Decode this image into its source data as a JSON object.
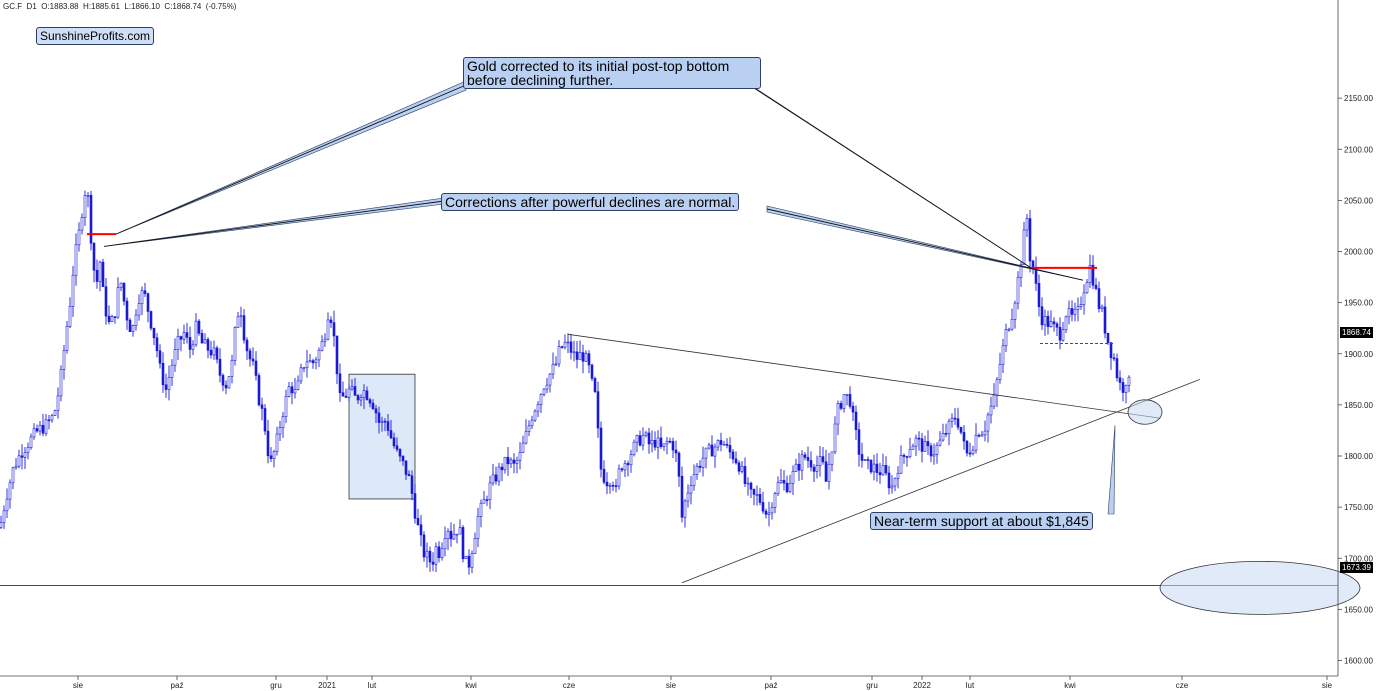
{
  "header": {
    "text": "GC.F  D1  O:1883.88  H:1885.61  L:1866.10  C:1868.74  (-0.75%)"
  },
  "watermark": "SunshineProfits.com",
  "annotations": {
    "top": [
      "Gold corrected to its initial post-top bottom",
      "before declining further."
    ],
    "mid": "Corrections after powerful declines are normal.",
    "support": "Near-term support at about $1,845"
  },
  "price_tags": {
    "last": "1868.74",
    "level": "1673.39"
  },
  "chart_data": {
    "type": "candlestick",
    "title": "",
    "xlabel": "",
    "ylabel": "",
    "ylim": [
      1590,
      2175
    ],
    "y_ticks": [
      1600,
      1650,
      1700,
      1750,
      1800,
      1850,
      1900,
      1950,
      2000,
      2050,
      2100,
      2150
    ],
    "y_tick_labels": [
      "1600.00",
      "1650.00",
      "1700.00",
      "1750.00",
      "1800.00",
      "1850.00",
      "1900.00",
      "1950.00",
      "2000.00",
      "2050.00",
      "2100.00",
      "2150.00"
    ],
    "x_tick_labels": [
      "sie",
      "paź",
      "gru",
      "2021",
      "lut",
      "kwi",
      "cze",
      "sie",
      "paź",
      "gru",
      "2022",
      "lut",
      "kwi",
      "cze",
      "sie"
    ],
    "price_path": [
      [
        0,
        1730
      ],
      [
        6,
        1760
      ],
      [
        14,
        1790
      ],
      [
        22,
        1805
      ],
      [
        30,
        1815
      ],
      [
        38,
        1825
      ],
      [
        46,
        1830
      ],
      [
        54,
        1840
      ],
      [
        60,
        1870
      ],
      [
        66,
        1920
      ],
      [
        70,
        1950
      ],
      [
        74,
        1990
      ],
      [
        78,
        2010
      ],
      [
        82,
        2040
      ],
      [
        86,
        2065
      ],
      [
        89,
        2045
      ],
      [
        92,
        2000
      ],
      [
        96,
        1965
      ],
      [
        100,
        1990
      ],
      [
        104,
        1950
      ],
      [
        110,
        1925
      ],
      [
        116,
        1945
      ],
      [
        120,
        1975
      ],
      [
        126,
        1940
      ],
      [
        132,
        1920
      ],
      [
        138,
        1955
      ],
      [
        144,
        1960
      ],
      [
        150,
        1935
      ],
      [
        156,
        1910
      ],
      [
        160,
        1885
      ],
      [
        166,
        1865
      ],
      [
        172,
        1890
      ],
      [
        178,
        1910
      ],
      [
        184,
        1920
      ],
      [
        190,
        1905
      ],
      [
        196,
        1925
      ],
      [
        202,
        1910
      ],
      [
        208,
        1905
      ],
      [
        214,
        1900
      ],
      [
        220,
        1880
      ],
      [
        226,
        1870
      ],
      [
        232,
        1890
      ],
      [
        236,
        1930
      ],
      [
        240,
        1950
      ],
      [
        244,
        1920
      ],
      [
        248,
        1900
      ],
      [
        254,
        1885
      ],
      [
        258,
        1860
      ],
      [
        264,
        1835
      ],
      [
        270,
        1790
      ],
      [
        276,
        1810
      ],
      [
        282,
        1840
      ],
      [
        290,
        1870
      ],
      [
        296,
        1860
      ],
      [
        302,
        1885
      ],
      [
        306,
        1895
      ],
      [
        312,
        1890
      ],
      [
        318,
        1900
      ],
      [
        324,
        1915
      ],
      [
        328,
        1940
      ],
      [
        332,
        1935
      ],
      [
        336,
        1895
      ],
      [
        340,
        1855
      ],
      [
        346,
        1860
      ],
      [
        350,
        1865
      ],
      [
        356,
        1855
      ],
      [
        362,
        1865
      ],
      [
        368,
        1860
      ],
      [
        374,
        1850
      ],
      [
        380,
        1830
      ],
      [
        386,
        1835
      ],
      [
        392,
        1815
      ],
      [
        398,
        1800
      ],
      [
        404,
        1790
      ],
      [
        410,
        1775
      ],
      [
        416,
        1740
      ],
      [
        420,
        1720
      ],
      [
        424,
        1705
      ],
      [
        428,
        1700
      ],
      [
        432,
        1695
      ],
      [
        436,
        1710
      ],
      [
        440,
        1705
      ],
      [
        444,
        1725
      ],
      [
        448,
        1730
      ],
      [
        452,
        1720
      ],
      [
        456,
        1730
      ],
      [
        460,
        1725
      ],
      [
        464,
        1700
      ],
      [
        468,
        1690
      ],
      [
        472,
        1710
      ],
      [
        478,
        1740
      ],
      [
        484,
        1755
      ],
      [
        490,
        1770
      ],
      [
        496,
        1780
      ],
      [
        502,
        1790
      ],
      [
        508,
        1795
      ],
      [
        514,
        1790
      ],
      [
        520,
        1800
      ],
      [
        526,
        1820
      ],
      [
        532,
        1840
      ],
      [
        538,
        1855
      ],
      [
        544,
        1870
      ],
      [
        550,
        1880
      ],
      [
        556,
        1890
      ],
      [
        560,
        1905
      ],
      [
        566,
        1910
      ],
      [
        570,
        1905
      ],
      [
        576,
        1895
      ],
      [
        582,
        1900
      ],
      [
        588,
        1890
      ],
      [
        592,
        1870
      ],
      [
        596,
        1855
      ],
      [
        600,
        1790
      ],
      [
        606,
        1775
      ],
      [
        612,
        1780
      ],
      [
        616,
        1765
      ],
      [
        620,
        1790
      ],
      [
        626,
        1795
      ],
      [
        632,
        1805
      ],
      [
        638,
        1815
      ],
      [
        644,
        1820
      ],
      [
        650,
        1810
      ],
      [
        656,
        1815
      ],
      [
        662,
        1805
      ],
      [
        668,
        1815
      ],
      [
        674,
        1810
      ],
      [
        678,
        1790
      ],
      [
        682,
        1740
      ],
      [
        686,
        1760
      ],
      [
        692,
        1780
      ],
      [
        698,
        1790
      ],
      [
        704,
        1800
      ],
      [
        710,
        1805
      ],
      [
        716,
        1810
      ],
      [
        722,
        1815
      ],
      [
        728,
        1805
      ],
      [
        734,
        1800
      ],
      [
        740,
        1790
      ],
      [
        746,
        1770
      ],
      [
        752,
        1760
      ],
      [
        758,
        1760
      ],
      [
        764,
        1750
      ],
      [
        768,
        1740
      ],
      [
        774,
        1765
      ],
      [
        780,
        1775
      ],
      [
        786,
        1770
      ],
      [
        792,
        1780
      ],
      [
        798,
        1790
      ],
      [
        804,
        1800
      ],
      [
        810,
        1795
      ],
      [
        816,
        1790
      ],
      [
        822,
        1795
      ],
      [
        826,
        1775
      ],
      [
        832,
        1810
      ],
      [
        838,
        1845
      ],
      [
        844,
        1860
      ],
      [
        850,
        1855
      ],
      [
        854,
        1830
      ],
      [
        860,
        1800
      ],
      [
        866,
        1790
      ],
      [
        872,
        1790
      ],
      [
        878,
        1785
      ],
      [
        884,
        1785
      ],
      [
        888,
        1775
      ],
      [
        892,
        1770
      ],
      [
        898,
        1790
      ],
      [
        904,
        1800
      ],
      [
        910,
        1810
      ],
      [
        916,
        1815
      ],
      [
        922,
        1810
      ],
      [
        928,
        1805
      ],
      [
        934,
        1805
      ],
      [
        938,
        1810
      ],
      [
        944,
        1820
      ],
      [
        950,
        1830
      ],
      [
        956,
        1840
      ],
      [
        962,
        1820
      ],
      [
        966,
        1800
      ],
      [
        972,
        1810
      ],
      [
        978,
        1825
      ],
      [
        984,
        1825
      ],
      [
        988,
        1840
      ],
      [
        994,
        1855
      ],
      [
        1000,
        1890
      ],
      [
        1006,
        1920
      ],
      [
        1012,
        1940
      ],
      [
        1016,
        1960
      ],
      [
        1020,
        1985
      ],
      [
        1024,
        2015
      ],
      [
        1026,
        2045
      ],
      [
        1030,
        1995
      ],
      [
        1034,
        1980
      ],
      [
        1038,
        1950
      ],
      [
        1042,
        1935
      ],
      [
        1048,
        1930
      ],
      [
        1054,
        1925
      ],
      [
        1060,
        1920
      ],
      [
        1066,
        1940
      ],
      [
        1072,
        1935
      ],
      [
        1078,
        1940
      ],
      [
        1084,
        1965
      ],
      [
        1090,
        1985
      ],
      [
        1094,
        1970
      ],
      [
        1098,
        1950
      ],
      [
        1102,
        1940
      ],
      [
        1106,
        1920
      ],
      [
        1110,
        1905
      ],
      [
        1114,
        1895
      ],
      [
        1118,
        1875
      ],
      [
        1122,
        1865
      ],
      [
        1126,
        1875
      ],
      [
        1130,
        1869
      ]
    ],
    "highlight_box": {
      "x_range": [
        349,
        415
      ],
      "y_range": [
        1758,
        1880
      ]
    },
    "trendlines": [
      {
        "name": "",
        "points": [
          [
            568,
            1919
          ],
          [
            1160,
            1837
          ]
        ]
      },
      {
        "name": "",
        "points": [
          [
            682,
            1676
          ],
          [
            1200,
            1875
          ]
        ]
      }
    ],
    "horizontal_lines": [
      {
        "value": 1673.39
      },
      {
        "value": 2017,
        "x_range": [
          87,
          116
        ],
        "color": "#ff0000"
      },
      {
        "value": 1984,
        "x_range": [
          1031,
          1097
        ],
        "color": "#ff0000"
      },
      {
        "value": 1910,
        "x_range": [
          1040,
          1115
        ],
        "color": "#ff0000",
        "dashed": true
      }
    ],
    "ellipses": [
      {
        "cx": 1145,
        "cy": 1843,
        "rx": 17,
        "ry_val": 10
      },
      {
        "cx": 1260,
        "cy": 1671,
        "rx": 100,
        "ry_val": 22
      }
    ],
    "grid": false,
    "series_color": "#1a1ad6"
  }
}
